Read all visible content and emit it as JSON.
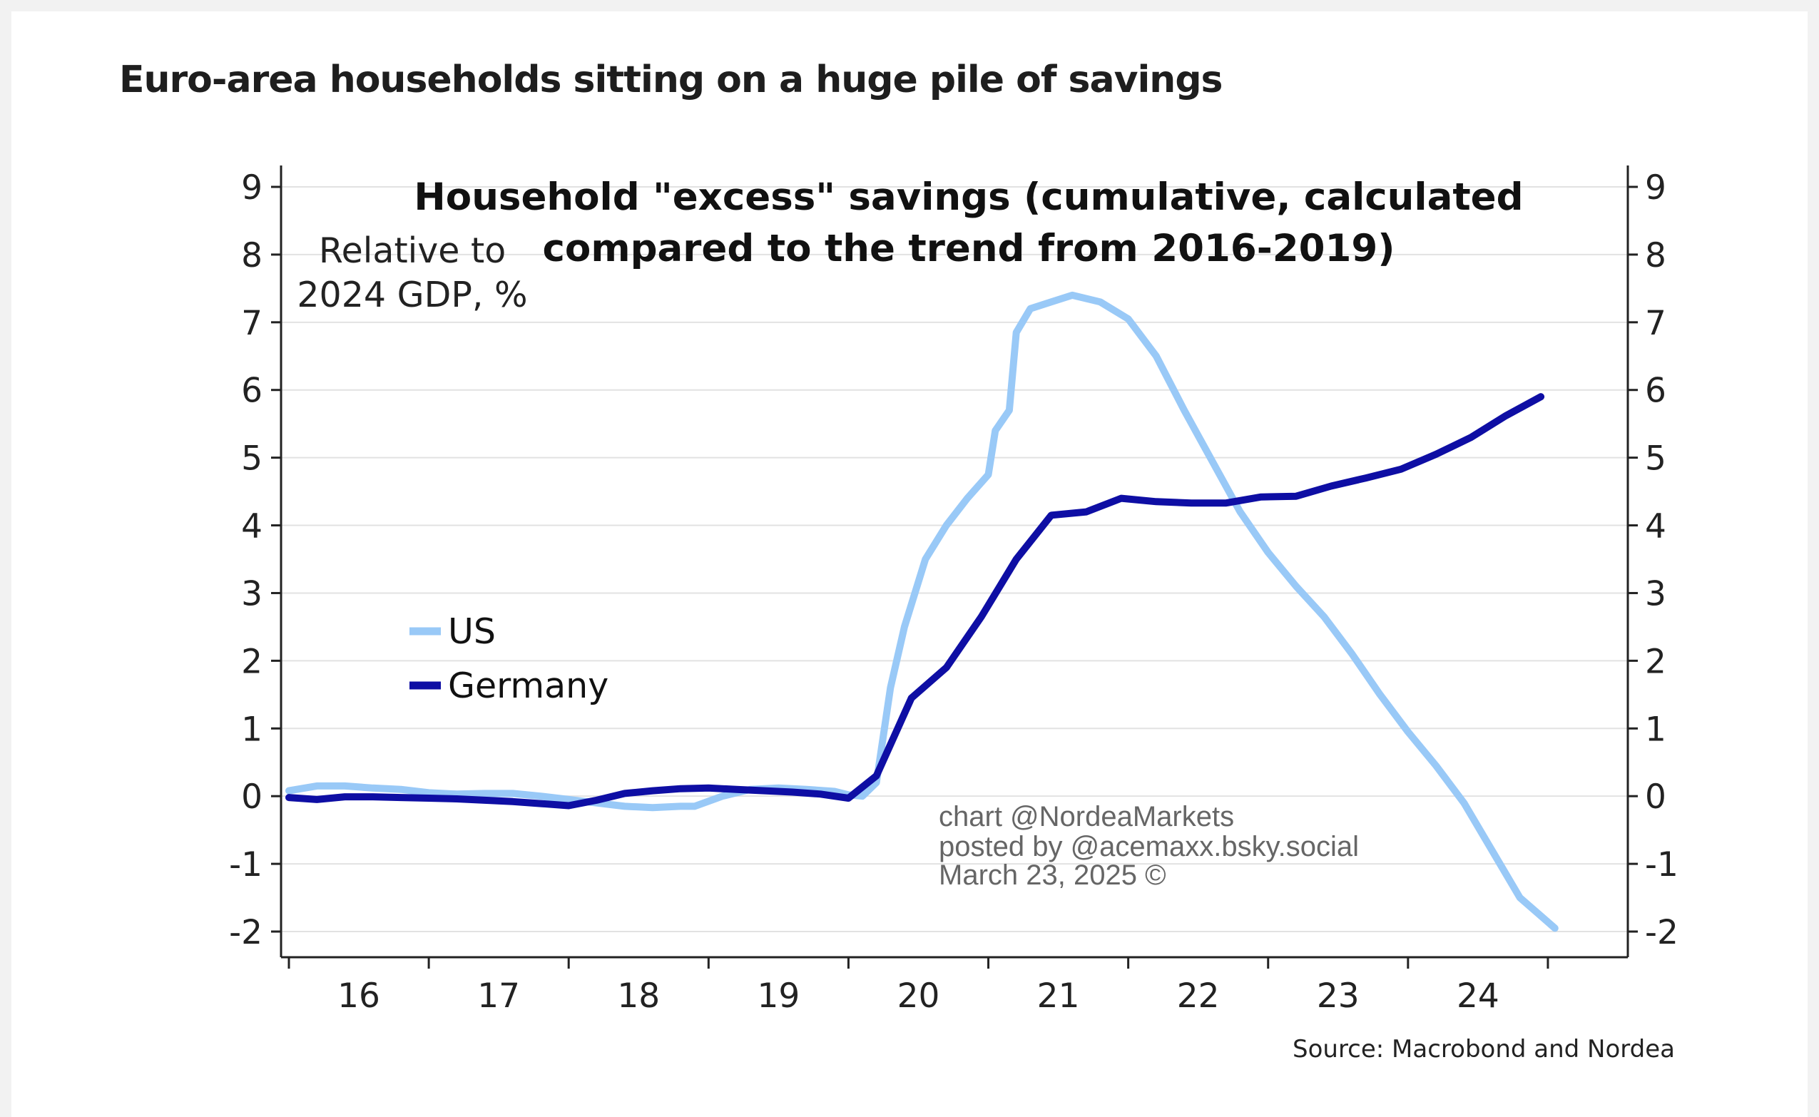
{
  "headline": "Euro-area households sitting on a huge pile of savings",
  "chart_data": {
    "type": "line",
    "title_line1": "Household \"excess\" savings (cumulative, calculated",
    "title_line2": "compared to the trend from 2016-2019)",
    "ylabel_line1": "Relative to",
    "ylabel_line2": "2024 GDP, %",
    "ylim": [
      -2,
      9
    ],
    "yticks": [
      "9",
      "8",
      "7",
      "6",
      "5",
      "4",
      "3",
      "2",
      "1",
      "0",
      "-1",
      "-2"
    ],
    "xlim": [
      2015.5,
      2025.0
    ],
    "x_tick_labels": [
      {
        "x": 2016.0,
        "label": "16"
      },
      {
        "x": 2017.0,
        "label": "17"
      },
      {
        "x": 2018.0,
        "label": "18"
      },
      {
        "x": 2019.0,
        "label": "19"
      },
      {
        "x": 2020.0,
        "label": "20"
      },
      {
        "x": 2021.0,
        "label": "21"
      },
      {
        "x": 2022.0,
        "label": "22"
      },
      {
        "x": 2023.0,
        "label": "23"
      },
      {
        "x": 2024.0,
        "label": "24"
      }
    ],
    "x_boundaries": [
      2015.5,
      2016.5,
      2017.5,
      2018.5,
      2019.5,
      2020.5,
      2021.5,
      2022.5,
      2023.5,
      2024.5
    ],
    "grid": "horizontal",
    "legend_position": "middle-left",
    "series": [
      {
        "name": "US",
        "color": "#99c9f7",
        "points": [
          [
            2015.5,
            0.08
          ],
          [
            2015.7,
            0.15
          ],
          [
            2015.9,
            0.15
          ],
          [
            2016.1,
            0.12
          ],
          [
            2016.3,
            0.1
          ],
          [
            2016.5,
            0.05
          ],
          [
            2016.7,
            0.03
          ],
          [
            2016.9,
            0.04
          ],
          [
            2017.1,
            0.04
          ],
          [
            2017.3,
            0.0
          ],
          [
            2017.5,
            -0.05
          ],
          [
            2017.7,
            -0.1
          ],
          [
            2017.9,
            -0.15
          ],
          [
            2018.1,
            -0.17
          ],
          [
            2018.3,
            -0.15
          ],
          [
            2018.4,
            -0.15
          ],
          [
            2018.6,
            0.0
          ],
          [
            2018.8,
            0.1
          ],
          [
            2019.0,
            0.12
          ],
          [
            2019.2,
            0.1
          ],
          [
            2019.4,
            0.07
          ],
          [
            2019.5,
            0.02
          ],
          [
            2019.6,
            0.0
          ],
          [
            2019.7,
            0.2
          ],
          [
            2019.8,
            1.6
          ],
          [
            2019.9,
            2.5
          ],
          [
            2020.05,
            3.5
          ],
          [
            2020.2,
            4.0
          ],
          [
            2020.35,
            4.4
          ],
          [
            2020.5,
            4.75
          ],
          [
            2020.55,
            5.4
          ],
          [
            2020.65,
            5.7
          ],
          [
            2020.7,
            6.85
          ],
          [
            2020.8,
            7.2
          ],
          [
            2020.95,
            7.3
          ],
          [
            2021.1,
            7.4
          ],
          [
            2021.3,
            7.3
          ],
          [
            2021.5,
            7.05
          ],
          [
            2021.7,
            6.5
          ],
          [
            2021.9,
            5.7
          ],
          [
            2022.1,
            4.95
          ],
          [
            2022.3,
            4.2
          ],
          [
            2022.5,
            3.6
          ],
          [
            2022.7,
            3.1
          ],
          [
            2022.9,
            2.65
          ],
          [
            2023.1,
            2.1
          ],
          [
            2023.3,
            1.5
          ],
          [
            2023.5,
            0.95
          ],
          [
            2023.7,
            0.45
          ],
          [
            2023.9,
            -0.1
          ],
          [
            2024.1,
            -0.8
          ],
          [
            2024.3,
            -1.5
          ],
          [
            2024.55,
            -1.95
          ]
        ]
      },
      {
        "name": "Germany",
        "color": "#0e0ea4",
        "points": [
          [
            2015.5,
            -0.02
          ],
          [
            2015.7,
            -0.05
          ],
          [
            2015.9,
            -0.01
          ],
          [
            2016.1,
            -0.01
          ],
          [
            2016.3,
            -0.02
          ],
          [
            2016.5,
            -0.03
          ],
          [
            2016.7,
            -0.04
          ],
          [
            2016.9,
            -0.06
          ],
          [
            2017.1,
            -0.08
          ],
          [
            2017.3,
            -0.11
          ],
          [
            2017.5,
            -0.14
          ],
          [
            2017.7,
            -0.06
          ],
          [
            2017.9,
            0.04
          ],
          [
            2018.1,
            0.08
          ],
          [
            2018.3,
            0.11
          ],
          [
            2018.5,
            0.12
          ],
          [
            2018.7,
            0.1
          ],
          [
            2018.9,
            0.08
          ],
          [
            2019.1,
            0.06
          ],
          [
            2019.3,
            0.03
          ],
          [
            2019.5,
            -0.03
          ],
          [
            2019.7,
            0.3
          ],
          [
            2019.95,
            1.45
          ],
          [
            2020.2,
            1.9
          ],
          [
            2020.45,
            2.65
          ],
          [
            2020.7,
            3.5
          ],
          [
            2020.95,
            4.15
          ],
          [
            2021.2,
            4.2
          ],
          [
            2021.45,
            4.4
          ],
          [
            2021.7,
            4.35
          ],
          [
            2021.95,
            4.33
          ],
          [
            2022.2,
            4.33
          ],
          [
            2022.45,
            4.42
          ],
          [
            2022.7,
            4.43
          ],
          [
            2022.95,
            4.58
          ],
          [
            2023.2,
            4.7
          ],
          [
            2023.45,
            4.83
          ],
          [
            2023.7,
            5.05
          ],
          [
            2023.95,
            5.3
          ],
          [
            2024.2,
            5.62
          ],
          [
            2024.45,
            5.9
          ]
        ]
      }
    ]
  },
  "watermark": {
    "line1": "chart @NordeaMarkets",
    "line2": "posted by @acemaxx.bsky.social",
    "line3": "March 23, 2025 ©"
  },
  "source": "Source: Macrobond and Nordea"
}
